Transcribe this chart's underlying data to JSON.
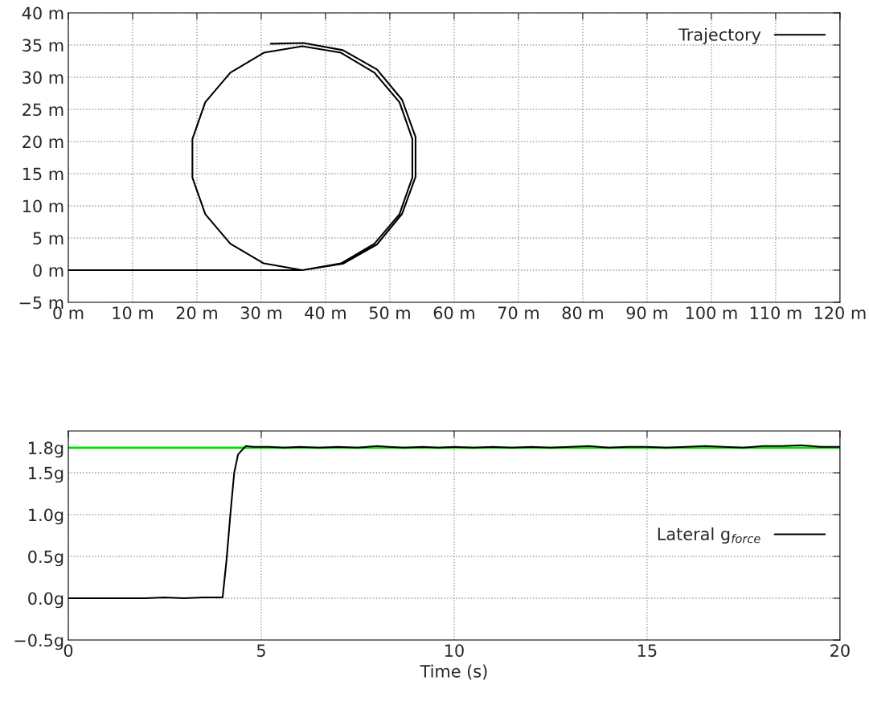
{
  "chart_data": [
    {
      "type": "line",
      "xlim": [
        0,
        120
      ],
      "ylim": [
        -5,
        40
      ],
      "xticks": [
        {
          "value": 0,
          "label": "0 m"
        },
        {
          "value": 10,
          "label": "10 m"
        },
        {
          "value": 20,
          "label": "20 m"
        },
        {
          "value": 30,
          "label": "30 m"
        },
        {
          "value": 40,
          "label": "40 m"
        },
        {
          "value": 50,
          "label": "50 m"
        },
        {
          "value": 60,
          "label": "60 m"
        },
        {
          "value": 70,
          "label": "70 m"
        },
        {
          "value": 80,
          "label": "80 m"
        },
        {
          "value": 90,
          "label": "90 m"
        },
        {
          "value": 100,
          "label": "100 m"
        },
        {
          "value": 110,
          "label": "110 m"
        },
        {
          "value": 120,
          "label": "120 m"
        }
      ],
      "yticks": [
        {
          "value": -5,
          "label": "−5 m"
        },
        {
          "value": 0,
          "label": "0 m"
        },
        {
          "value": 5,
          "label": "5 m"
        },
        {
          "value": 10,
          "label": "10 m"
        },
        {
          "value": 15,
          "label": "15 m"
        },
        {
          "value": 20,
          "label": "20 m"
        },
        {
          "value": 25,
          "label": "25 m"
        },
        {
          "value": 30,
          "label": "30 m"
        },
        {
          "value": 35,
          "label": "35 m"
        },
        {
          "value": 40,
          "label": "40 m"
        }
      ],
      "grid": true,
      "legend": "top right",
      "series": [
        {
          "name": "Trajectory",
          "color": "#000000",
          "x": [
            0,
            10,
            20,
            30,
            36.4,
            42.4,
            47.6,
            51.5,
            53.5,
            53.5,
            51.5,
            47.6,
            42.4,
            36.4,
            30.4,
            25.2,
            21.3,
            19.3,
            19.3,
            21.3,
            25.2,
            30.4,
            36.4,
            42.7,
            48.0,
            51.9,
            54.0,
            54.0,
            51.9,
            48.0,
            42.7,
            36.6,
            31.5
          ],
          "values": [
            0,
            0,
            0,
            0,
            0.0,
            1.05,
            4.1,
            8.7,
            14.4,
            20.4,
            26.1,
            30.7,
            33.8,
            34.8,
            33.8,
            30.7,
            26.1,
            20.4,
            14.4,
            8.7,
            4.1,
            1.05,
            0.0,
            1.0,
            4.0,
            8.75,
            14.5,
            20.7,
            26.5,
            31.2,
            34.2,
            35.3,
            35.2
          ]
        }
      ]
    },
    {
      "type": "line",
      "xlim": [
        0,
        20
      ],
      "ylim": [
        -0.5,
        2.0
      ],
      "xlabel": "Time (s)",
      "xticks": [
        0,
        5,
        10,
        15,
        20
      ],
      "yticks": [
        {
          "value": -0.5,
          "label": "−0.5g"
        },
        {
          "value": 0,
          "label": "0.0g"
        },
        {
          "value": 0.5,
          "label": "0.5g"
        },
        {
          "value": 1.0,
          "label": "1.0g"
        },
        {
          "value": 1.5,
          "label": "1.5g"
        },
        {
          "value": 1.8,
          "label": "1.8g"
        }
      ],
      "grid": true,
      "legend": "right",
      "ref_lines": [
        {
          "axis": "y",
          "value": 1.8,
          "color": "#00dd00"
        }
      ],
      "series": [
        {
          "name": "Lateral g$_{force}$",
          "color": "#000000",
          "x": [
            0,
            1,
            2,
            2.5,
            3,
            3.5,
            3.8,
            4.0,
            4.1,
            4.2,
            4.3,
            4.4,
            4.5,
            4.6,
            4.8,
            5.2,
            5.6,
            6.0,
            6.5,
            7.0,
            7.5,
            8.0,
            8.3,
            8.7,
            9.2,
            9.6,
            10.0,
            10.5,
            11.0,
            11.5,
            12.0,
            12.5,
            13.0,
            13.5,
            14.0,
            14.5,
            15.0,
            15.5,
            16.0,
            16.5,
            17.0,
            17.5,
            18.0,
            18.5,
            19.0,
            19.5,
            20.0
          ],
          "values": [
            0,
            0,
            0,
            0.01,
            0.0,
            0.01,
            0.01,
            0.01,
            0.45,
            1.0,
            1.5,
            1.72,
            1.77,
            1.82,
            1.81,
            1.81,
            1.8,
            1.81,
            1.8,
            1.81,
            1.8,
            1.82,
            1.81,
            1.8,
            1.81,
            1.8,
            1.81,
            1.8,
            1.81,
            1.8,
            1.81,
            1.8,
            1.81,
            1.82,
            1.8,
            1.81,
            1.81,
            1.8,
            1.81,
            1.82,
            1.81,
            1.8,
            1.82,
            1.82,
            1.83,
            1.81,
            1.81
          ]
        }
      ]
    }
  ]
}
